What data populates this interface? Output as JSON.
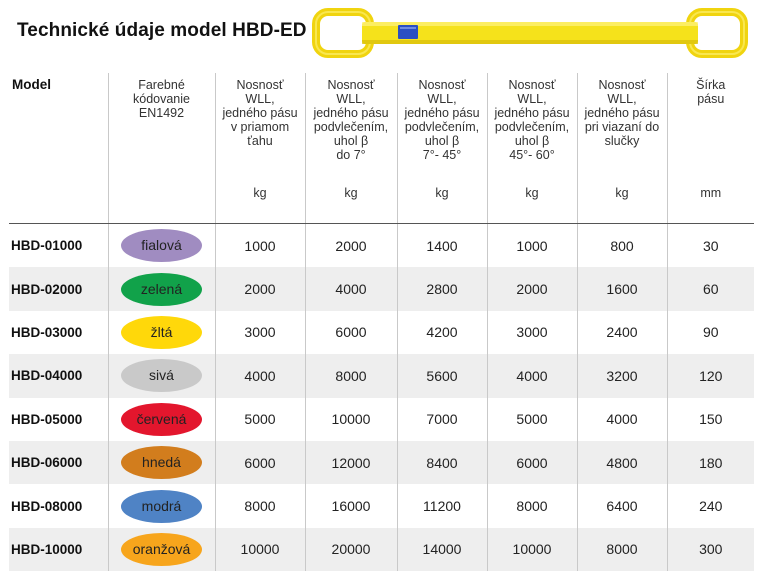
{
  "title": "Technické údaje model HBD-ED",
  "colors": {
    "sling_yellow": "#f5e21b",
    "sling_blue_tag": "#2a4fc2"
  },
  "table": {
    "headers": [
      {
        "label": "Model",
        "unit": ""
      },
      {
        "label": "Farebné\nkódovanie\nEN1492",
        "unit": ""
      },
      {
        "label": "Nosnosť\nWLL,\njedného pásu\nv priamom\nťahu",
        "unit": "kg"
      },
      {
        "label": "Nosnosť\nWLL,\njedného pásu\npodvlečením,\nuhol β\ndo 7°",
        "unit": "kg"
      },
      {
        "label": "Nosnosť\nWLL,\njedného pásu\npodvlečením,\nuhol β\n7°- 45°",
        "unit": "kg"
      },
      {
        "label": "Nosnosť\nWLL,\njedného pásu\npodvlečením,\nuhol β\n45°- 60°",
        "unit": "kg"
      },
      {
        "label": "Nosnosť\nWLL,\njedného pásu\npri viazaní do\nslučky",
        "unit": "kg"
      },
      {
        "label": "Šírka\npásu",
        "unit": "mm"
      }
    ],
    "rows": [
      {
        "model": "HBD-01000",
        "color_name": "fialová",
        "color": "#a08cc1",
        "v1": "1000",
        "v2": "2000",
        "v3": "1400",
        "v4": "1000",
        "v5": "800",
        "width": "30"
      },
      {
        "model": "HBD-02000",
        "color_name": "zelená",
        "color": "#11a24a",
        "v1": "2000",
        "v2": "4000",
        "v3": "2800",
        "v4": "2000",
        "v5": "1600",
        "width": "60"
      },
      {
        "model": "HBD-03000",
        "color_name": "žltá",
        "color": "#ffd80a",
        "v1": "3000",
        "v2": "6000",
        "v3": "4200",
        "v4": "3000",
        "v5": "2400",
        "width": "90"
      },
      {
        "model": "HBD-04000",
        "color_name": "sivá",
        "color": "#c9c9c9",
        "v1": "4000",
        "v2": "8000",
        "v3": "5600",
        "v4": "4000",
        "v5": "3200",
        "width": "120"
      },
      {
        "model": "HBD-05000",
        "color_name": "červená",
        "color": "#e3162d",
        "v1": "5000",
        "v2": "10000",
        "v3": "7000",
        "v4": "5000",
        "v5": "4000",
        "width": "150"
      },
      {
        "model": "HBD-06000",
        "color_name": "hnedá",
        "color": "#d27d1d",
        "v1": "6000",
        "v2": "12000",
        "v3": "8400",
        "v4": "6000",
        "v5": "4800",
        "width": "180"
      },
      {
        "model": "HBD-08000",
        "color_name": "modrá",
        "color": "#4f83c5",
        "v1": "8000",
        "v2": "16000",
        "v3": "11200",
        "v4": "8000",
        "v5": "6400",
        "width": "240"
      },
      {
        "model": "HBD-10000",
        "color_name": "oranžová",
        "color": "#f7a51c",
        "v1": "10000",
        "v2": "20000",
        "v3": "14000",
        "v4": "10000",
        "v5": "8000",
        "width": "300"
      }
    ]
  }
}
